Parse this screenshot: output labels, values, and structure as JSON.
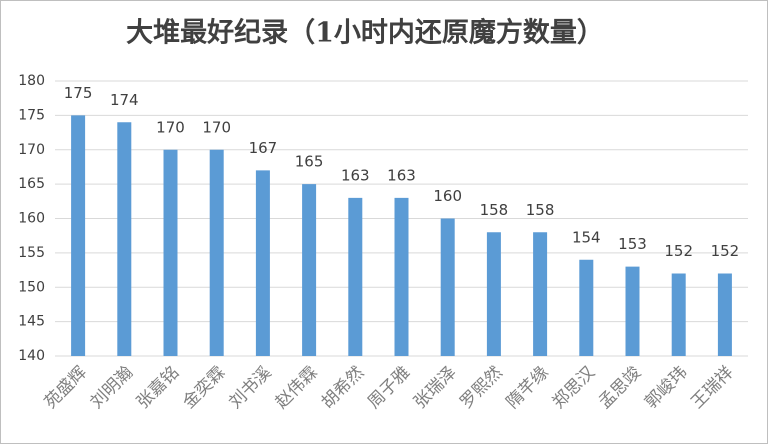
{
  "chart_data": {
    "type": "bar",
    "title": "大堆最好纪录（1小时内还原魔方数量）",
    "categories": [
      "苑盛辉",
      "刘明瀚",
      "张嘉铭",
      "金奕霖",
      "刘书溪",
      "赵伟霖",
      "胡希然",
      "周子雅",
      "张瑞泽",
      "罗熙然",
      "隋芊缘",
      "郑思汉",
      "孟思竣",
      "郭峻玮",
      "王瑞祥"
    ],
    "values": [
      175,
      174,
      170,
      170,
      167,
      165,
      163,
      163,
      160,
      158,
      158,
      154,
      153,
      152,
      152
    ],
    "color": "#5b9bd5",
    "ylim": [
      140,
      180
    ],
    "yticks": [
      140,
      145,
      150,
      155,
      160,
      165,
      170,
      175,
      180
    ],
    "grid": true
  }
}
